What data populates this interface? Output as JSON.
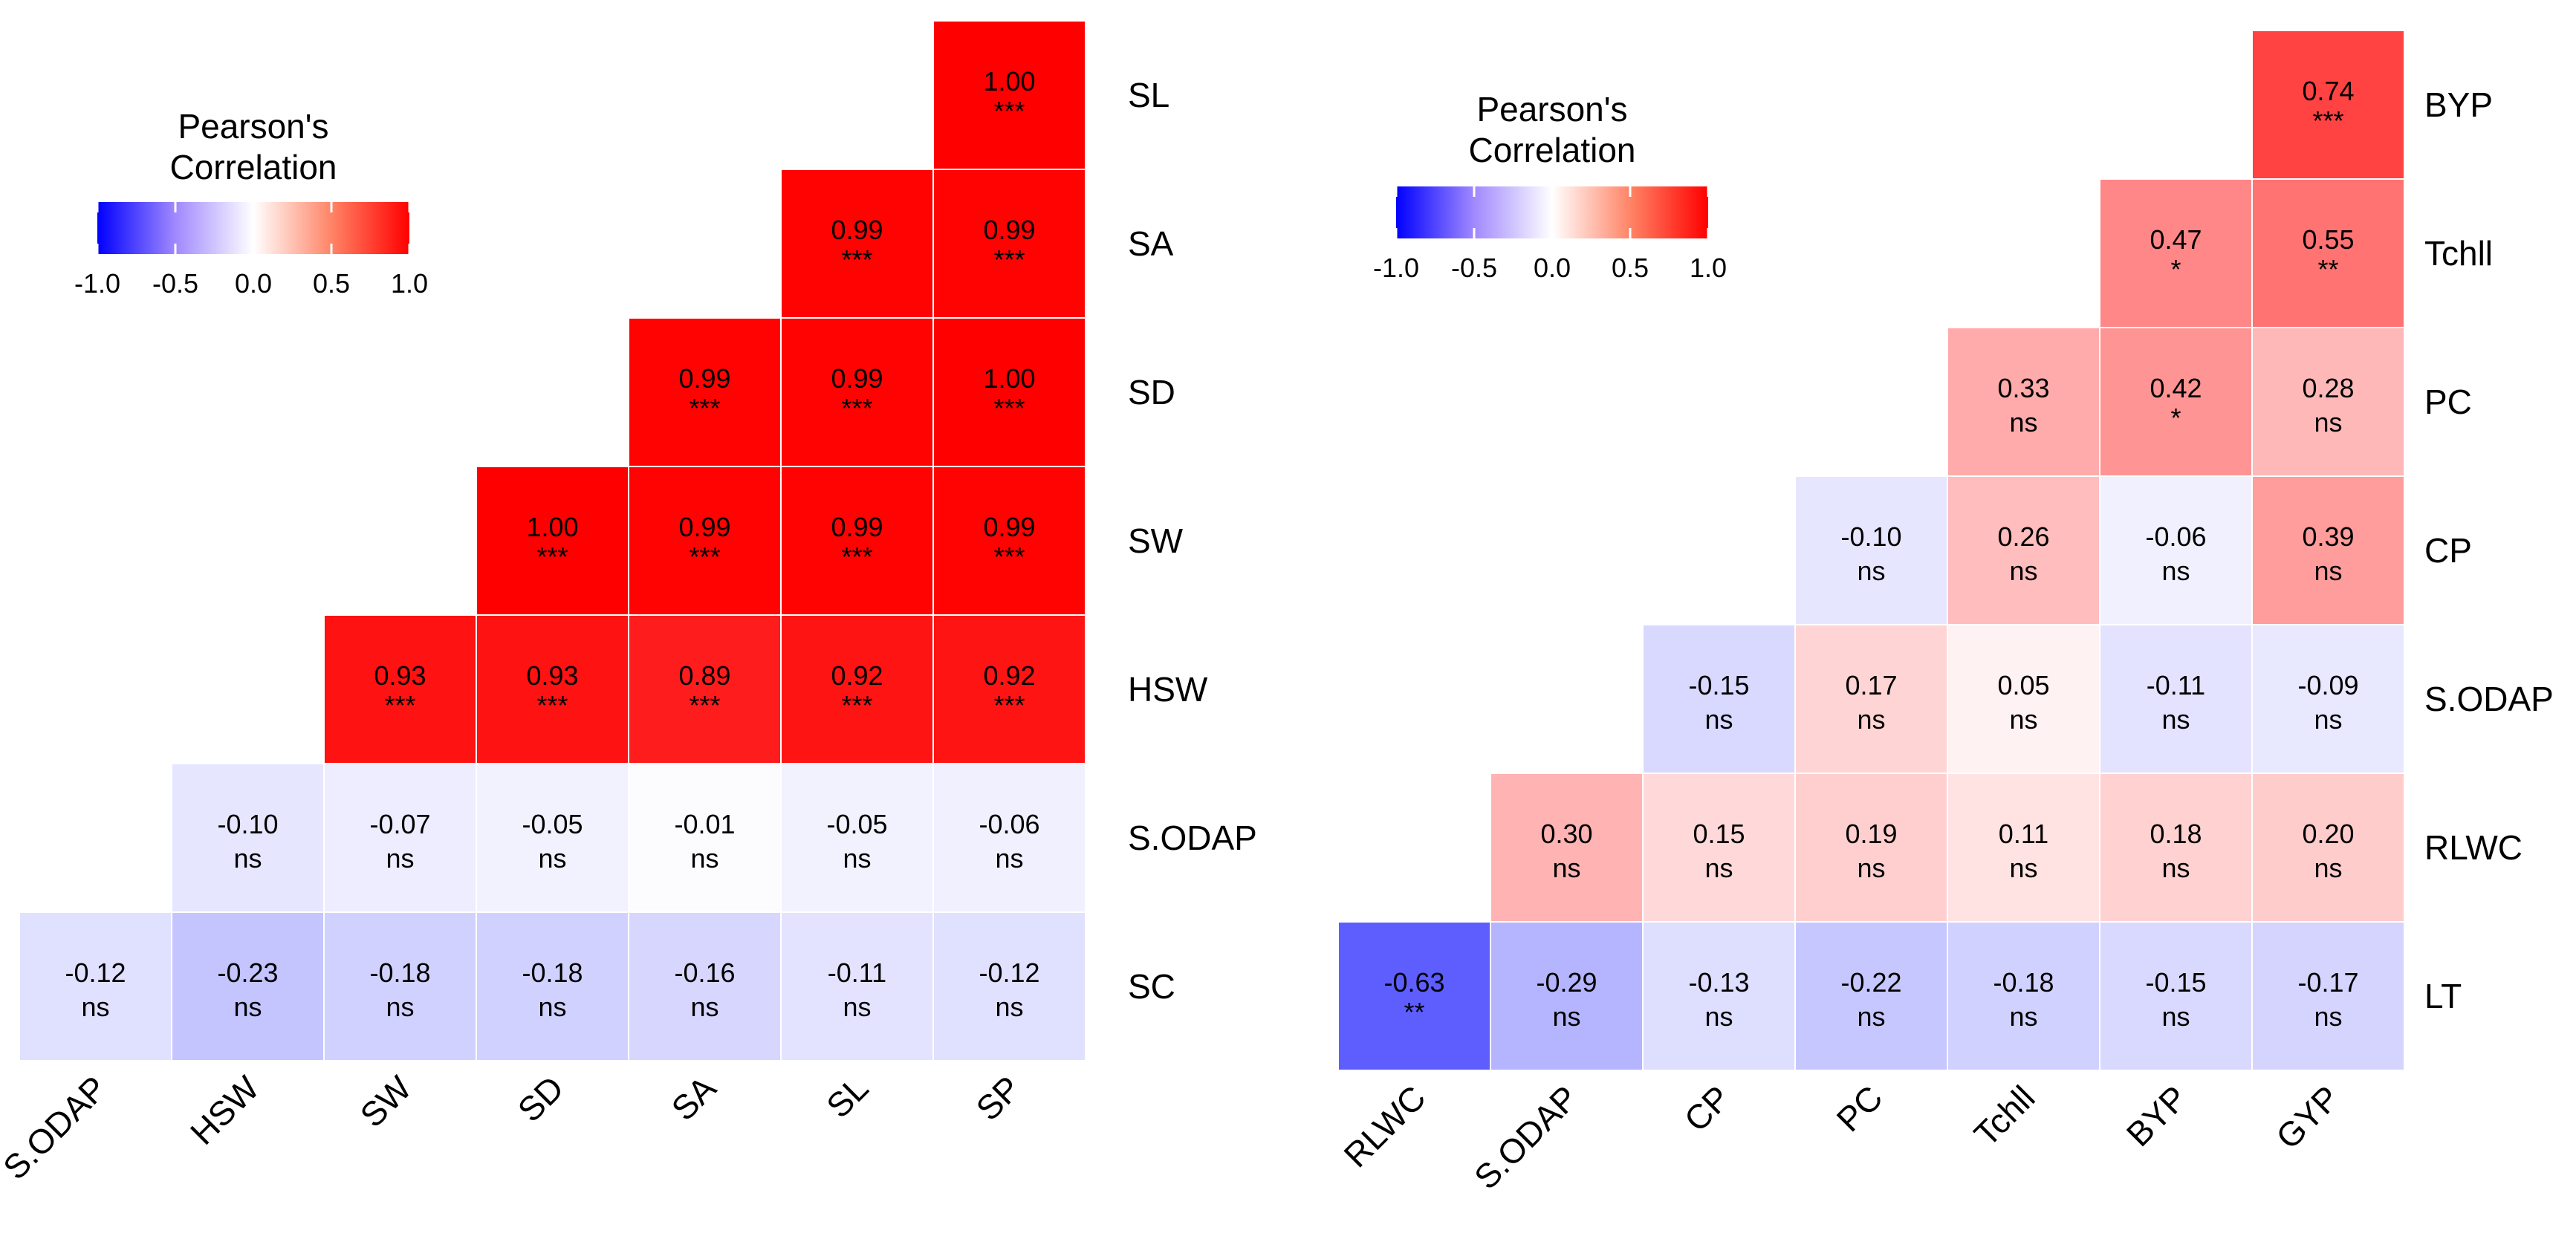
{
  "chart_data": [
    {
      "type": "heatmap",
      "title": "",
      "legend_title_line1": "Pearson's",
      "legend_title_line2": "Correlation",
      "legend_ticks": [
        "-1.0",
        "-0.5",
        "0.0",
        "0.5",
        "1.0"
      ],
      "legend_range": [
        -1.0,
        1.0
      ],
      "rows": [
        "SL",
        "SA",
        "SD",
        "SW",
        "HSW",
        "S.ODAP",
        "SC"
      ],
      "cols": [
        "S.ODAP",
        "HSW",
        "SW",
        "SD",
        "SA",
        "SL",
        "SP"
      ],
      "cells": [
        [
          null,
          null,
          null,
          null,
          null,
          null,
          {
            "v": 1.0,
            "label": "1.00",
            "sig": "***"
          }
        ],
        [
          null,
          null,
          null,
          null,
          null,
          {
            "v": 0.99,
            "label": "0.99",
            "sig": "***"
          },
          {
            "v": 0.99,
            "label": "0.99",
            "sig": "***"
          }
        ],
        [
          null,
          null,
          null,
          null,
          {
            "v": 0.99,
            "label": "0.99",
            "sig": "***"
          },
          {
            "v": 0.99,
            "label": "0.99",
            "sig": "***"
          },
          {
            "v": 1.0,
            "label": "1.00",
            "sig": "***"
          }
        ],
        [
          null,
          null,
          null,
          {
            "v": 1.0,
            "label": "1.00",
            "sig": "***"
          },
          {
            "v": 0.99,
            "label": "0.99",
            "sig": "***"
          },
          {
            "v": 0.99,
            "label": "0.99",
            "sig": "***"
          },
          {
            "v": 0.99,
            "label": "0.99",
            "sig": "***"
          }
        ],
        [
          null,
          null,
          {
            "v": 0.93,
            "label": "0.93",
            "sig": "***"
          },
          {
            "v": 0.93,
            "label": "0.93",
            "sig": "***"
          },
          {
            "v": 0.89,
            "label": "0.89",
            "sig": "***"
          },
          {
            "v": 0.92,
            "label": "0.92",
            "sig": "***"
          },
          {
            "v": 0.92,
            "label": "0.92",
            "sig": "***"
          }
        ],
        [
          null,
          {
            "v": -0.1,
            "label": "-0.10",
            "sig": "ns"
          },
          {
            "v": -0.07,
            "label": "-0.07",
            "sig": "ns"
          },
          {
            "v": -0.05,
            "label": "-0.05",
            "sig": "ns"
          },
          {
            "v": -0.01,
            "label": "-0.01",
            "sig": "ns"
          },
          {
            "v": -0.05,
            "label": "-0.05",
            "sig": "ns"
          },
          {
            "v": -0.06,
            "label": "-0.06",
            "sig": "ns"
          }
        ],
        [
          {
            "v": -0.12,
            "label": "-0.12",
            "sig": "ns"
          },
          {
            "v": -0.23,
            "label": "-0.23",
            "sig": "ns"
          },
          {
            "v": -0.18,
            "label": "-0.18",
            "sig": "ns"
          },
          {
            "v": -0.18,
            "label": "-0.18",
            "sig": "ns"
          },
          {
            "v": -0.16,
            "label": "-0.16",
            "sig": "ns"
          },
          {
            "v": -0.11,
            "label": "-0.11",
            "sig": "ns"
          },
          {
            "v": -0.12,
            "label": "-0.12",
            "sig": "ns"
          }
        ]
      ]
    },
    {
      "type": "heatmap",
      "title": "",
      "legend_title_line1": "Pearson's",
      "legend_title_line2": "Correlation",
      "legend_ticks": [
        "-1.0",
        "-0.5",
        "0.0",
        "0.5",
        "1.0"
      ],
      "legend_range": [
        -1.0,
        1.0
      ],
      "rows": [
        "BYP",
        "Tchll",
        "PC",
        "CP",
        "S.ODAP",
        "RLWC",
        "LT"
      ],
      "cols": [
        "RLWC",
        "S.ODAP",
        "CP",
        "PC",
        "Tchll",
        "BYP",
        "GYP"
      ],
      "cells": [
        [
          null,
          null,
          null,
          null,
          null,
          null,
          {
            "v": 0.74,
            "label": "0.74",
            "sig": "***"
          }
        ],
        [
          null,
          null,
          null,
          null,
          null,
          {
            "v": 0.47,
            "label": "0.47",
            "sig": "*"
          },
          {
            "v": 0.55,
            "label": "0.55",
            "sig": "**"
          }
        ],
        [
          null,
          null,
          null,
          null,
          {
            "v": 0.33,
            "label": "0.33",
            "sig": "ns"
          },
          {
            "v": 0.42,
            "label": "0.42",
            "sig": "*"
          },
          {
            "v": 0.28,
            "label": "0.28",
            "sig": "ns"
          }
        ],
        [
          null,
          null,
          null,
          {
            "v": -0.1,
            "label": "-0.10",
            "sig": "ns"
          },
          {
            "v": 0.26,
            "label": "0.26",
            "sig": "ns"
          },
          {
            "v": -0.06,
            "label": "-0.06",
            "sig": "ns"
          },
          {
            "v": 0.39,
            "label": "0.39",
            "sig": "ns"
          }
        ],
        [
          null,
          null,
          {
            "v": -0.15,
            "label": "-0.15",
            "sig": "ns"
          },
          {
            "v": 0.17,
            "label": "0.17",
            "sig": "ns"
          },
          {
            "v": 0.05,
            "label": "0.05",
            "sig": "ns"
          },
          {
            "v": -0.11,
            "label": "-0.11",
            "sig": "ns"
          },
          {
            "v": -0.09,
            "label": "-0.09",
            "sig": "ns"
          }
        ],
        [
          null,
          {
            "v": 0.3,
            "label": "0.30",
            "sig": "ns"
          },
          {
            "v": 0.15,
            "label": "0.15",
            "sig": "ns"
          },
          {
            "v": 0.19,
            "label": "0.19",
            "sig": "ns"
          },
          {
            "v": 0.11,
            "label": "0.11",
            "sig": "ns"
          },
          {
            "v": 0.18,
            "label": "0.18",
            "sig": "ns"
          },
          {
            "v": 0.2,
            "label": "0.20",
            "sig": "ns"
          }
        ],
        [
          {
            "v": -0.63,
            "label": "-0.63",
            "sig": "**"
          },
          {
            "v": -0.29,
            "label": "-0.29",
            "sig": "ns"
          },
          {
            "v": -0.13,
            "label": "-0.13",
            "sig": "ns"
          },
          {
            "v": -0.22,
            "label": "-0.22",
            "sig": "ns"
          },
          {
            "v": -0.18,
            "label": "-0.18",
            "sig": "ns"
          },
          {
            "v": -0.15,
            "label": "-0.15",
            "sig": "ns"
          },
          {
            "v": -0.17,
            "label": "-0.17",
            "sig": "ns"
          }
        ]
      ]
    }
  ],
  "colors": {
    "negative": "#0000ff",
    "neutral": "#ffffff",
    "positive": "#ff0000"
  }
}
